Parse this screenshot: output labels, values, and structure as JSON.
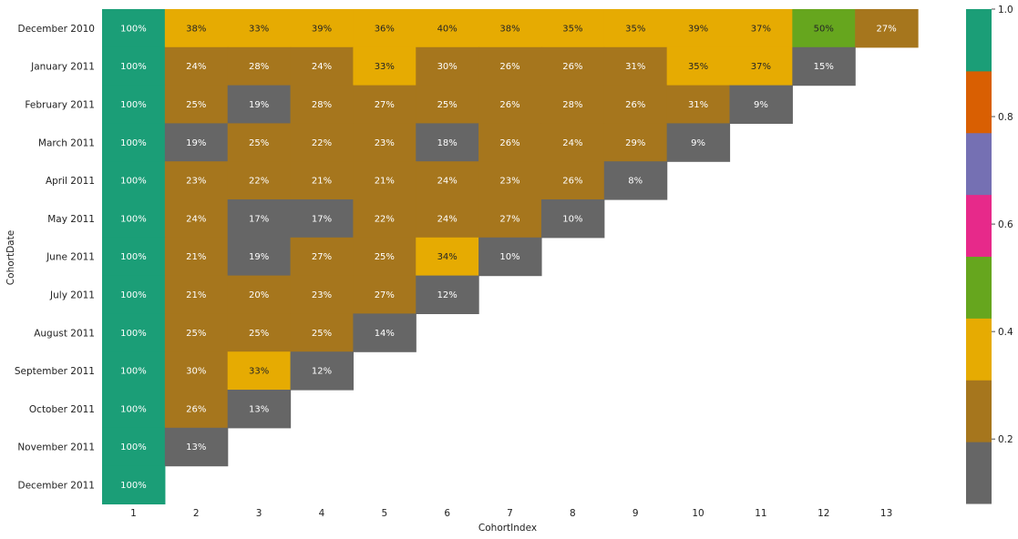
{
  "chart_data": {
    "type": "heatmap",
    "title": "",
    "xlabel": "CohortIndex",
    "ylabel": "CohortDate",
    "x_categories": [
      "1",
      "2",
      "3",
      "4",
      "5",
      "6",
      "7",
      "8",
      "9",
      "10",
      "11",
      "12",
      "13"
    ],
    "y_categories": [
      "December 2010",
      "January 2011",
      "February 2011",
      "March 2011",
      "April 2011",
      "May 2011",
      "June 2011",
      "July 2011",
      "August 2011",
      "September 2011",
      "October 2011",
      "November 2011",
      "December 2011"
    ],
    "values": [
      [
        1.0,
        0.38,
        0.33,
        0.39,
        0.36,
        0.4,
        0.38,
        0.35,
        0.35,
        0.39,
        0.37,
        0.5,
        0.27
      ],
      [
        1.0,
        0.24,
        0.28,
        0.24,
        0.33,
        0.3,
        0.26,
        0.26,
        0.31,
        0.35,
        0.37,
        0.15,
        null
      ],
      [
        1.0,
        0.25,
        0.19,
        0.28,
        0.27,
        0.25,
        0.26,
        0.28,
        0.26,
        0.31,
        0.09,
        null,
        null
      ],
      [
        1.0,
        0.19,
        0.25,
        0.22,
        0.23,
        0.18,
        0.26,
        0.24,
        0.29,
        0.09,
        null,
        null,
        null
      ],
      [
        1.0,
        0.23,
        0.22,
        0.21,
        0.21,
        0.24,
        0.23,
        0.26,
        0.08,
        null,
        null,
        null,
        null
      ],
      [
        1.0,
        0.24,
        0.17,
        0.17,
        0.22,
        0.24,
        0.27,
        0.1,
        null,
        null,
        null,
        null,
        null
      ],
      [
        1.0,
        0.21,
        0.19,
        0.27,
        0.25,
        0.34,
        0.1,
        null,
        null,
        null,
        null,
        null,
        null
      ],
      [
        1.0,
        0.21,
        0.2,
        0.23,
        0.27,
        0.12,
        null,
        null,
        null,
        null,
        null,
        null,
        null
      ],
      [
        1.0,
        0.25,
        0.25,
        0.25,
        0.14,
        null,
        null,
        null,
        null,
        null,
        null,
        null,
        null
      ],
      [
        1.0,
        0.3,
        0.33,
        0.12,
        null,
        null,
        null,
        null,
        null,
        null,
        null,
        null,
        null
      ],
      [
        1.0,
        0.26,
        0.13,
        null,
        null,
        null,
        null,
        null,
        null,
        null,
        null,
        null,
        null
      ],
      [
        1.0,
        0.13,
        null,
        null,
        null,
        null,
        null,
        null,
        null,
        null,
        null,
        null,
        null
      ],
      [
        1.0,
        null,
        null,
        null,
        null,
        null,
        null,
        null,
        null,
        null,
        null,
        null,
        null
      ]
    ],
    "cell_labels": [
      [
        "100%",
        "38%",
        "33%",
        "39%",
        "36%",
        "40%",
        "38%",
        "35%",
        "35%",
        "39%",
        "37%",
        "50%",
        "27%"
      ],
      [
        "100%",
        "24%",
        "28%",
        "24%",
        "33%",
        "30%",
        "26%",
        "26%",
        "31%",
        "35%",
        "37%",
        "15%",
        ""
      ],
      [
        "100%",
        "25%",
        "19%",
        "28%",
        "27%",
        "25%",
        "26%",
        "28%",
        "26%",
        "31%",
        "9%",
        "",
        ""
      ],
      [
        "100%",
        "19%",
        "25%",
        "22%",
        "23%",
        "18%",
        "26%",
        "24%",
        "29%",
        "9%",
        "",
        "",
        ""
      ],
      [
        "100%",
        "23%",
        "22%",
        "21%",
        "21%",
        "24%",
        "23%",
        "26%",
        "8%",
        "",
        "",
        "",
        ""
      ],
      [
        "100%",
        "24%",
        "17%",
        "17%",
        "22%",
        "24%",
        "27%",
        "10%",
        "",
        "",
        "",
        "",
        ""
      ],
      [
        "100%",
        "21%",
        "19%",
        "27%",
        "25%",
        "34%",
        "10%",
        "",
        "",
        "",
        "",
        "",
        ""
      ],
      [
        "100%",
        "21%",
        "20%",
        "23%",
        "27%",
        "12%",
        "",
        "",
        "",
        "",
        "",
        "",
        ""
      ],
      [
        "100%",
        "25%",
        "25%",
        "25%",
        "14%",
        "",
        "",
        "",
        "",
        "",
        "",
        "",
        ""
      ],
      [
        "100%",
        "30%",
        "33%",
        "12%",
        "",
        "",
        "",
        "",
        "",
        "",
        "",
        "",
        ""
      ],
      [
        "100%",
        "26%",
        "13%",
        "",
        "",
        "",
        "",
        "",
        "",
        "",
        "",
        "",
        ""
      ],
      [
        "100%",
        "13%",
        "",
        "",
        "",
        "",
        "",
        "",
        "",
        "",
        "",
        "",
        ""
      ],
      [
        "100%",
        "",
        "",
        "",
        "",
        "",
        "",
        "",
        "",
        "",
        "",
        "",
        ""
      ]
    ],
    "colormap": "Dark2",
    "color_range": [
      0.08,
      1.0
    ],
    "colormap_colors": [
      "#666666",
      "#a6761d",
      "#e6ab02",
      "#66a61e",
      "#e7298a",
      "#7570b3",
      "#d95f02",
      "#1b9e77"
    ],
    "colorbar": {
      "position": "right",
      "ticks": [
        0.2,
        0.4,
        0.6,
        0.8,
        1.0
      ],
      "tick_labels": [
        "0.2",
        "0.4",
        "0.6",
        "0.8",
        "1.0"
      ]
    },
    "text_colors": {
      "on_dark": "#ffffff",
      "on_light": "#262626"
    },
    "grid": false
  }
}
